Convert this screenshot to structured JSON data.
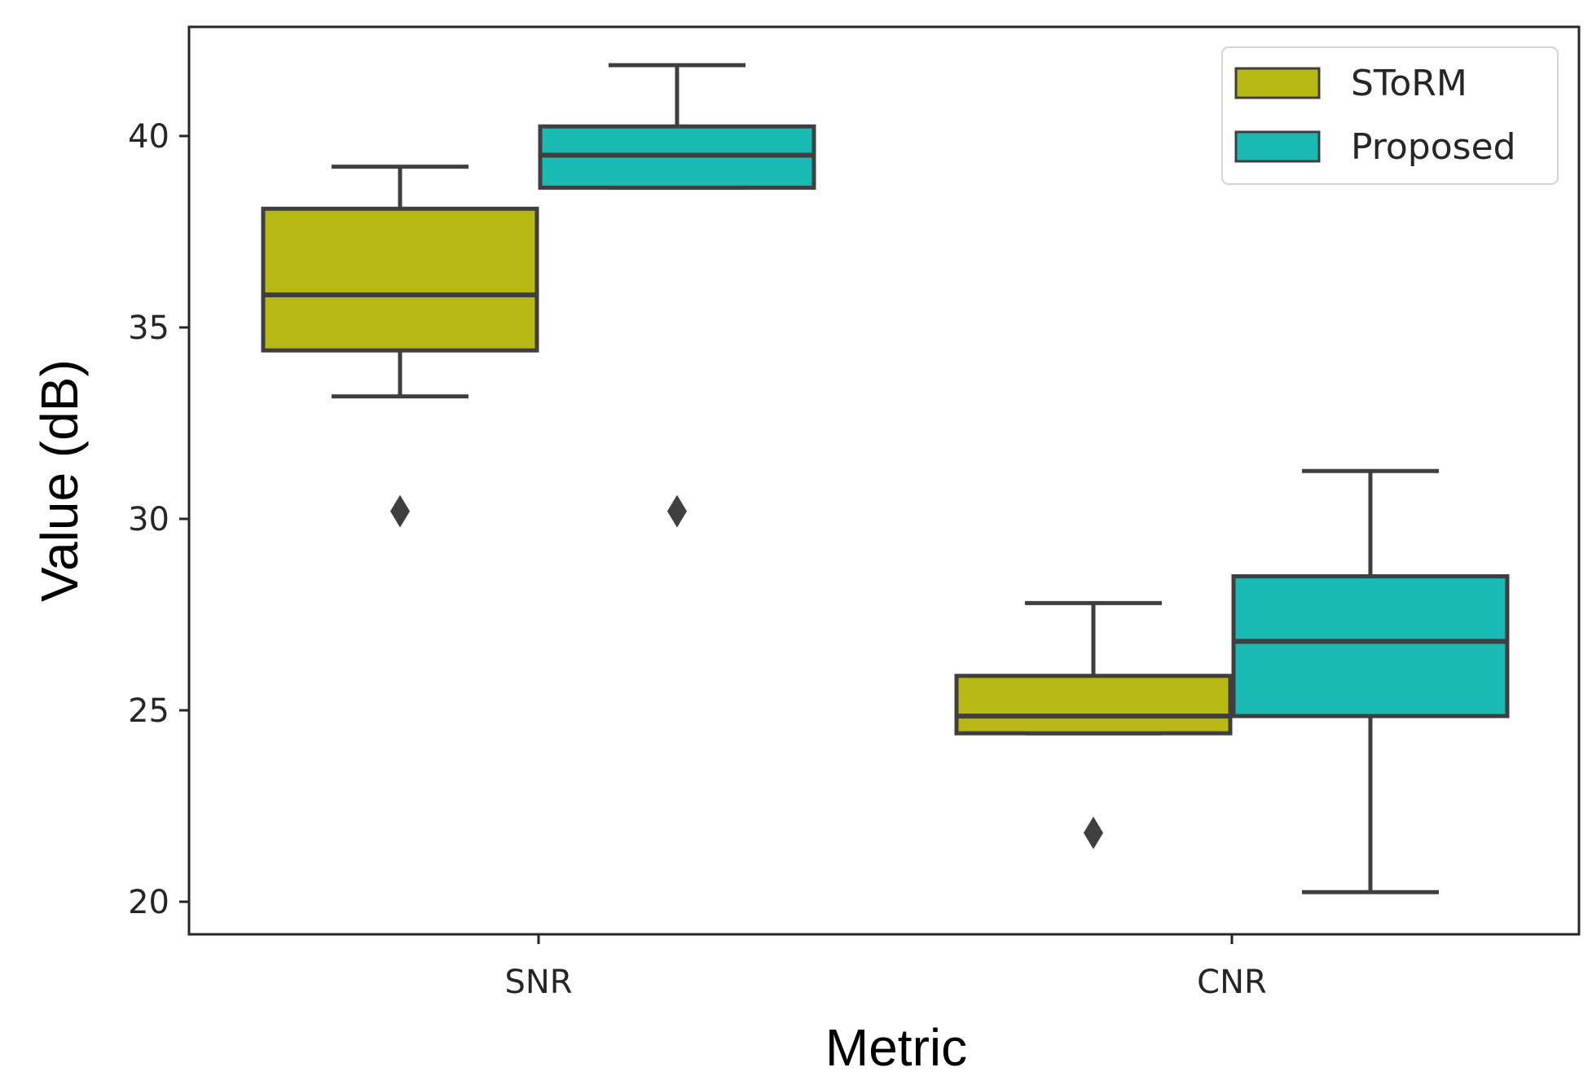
{
  "chart_data": {
    "type": "box",
    "xlabel": "Metric",
    "ylabel": "Value (dB)",
    "categories": [
      "SNR",
      "CNR"
    ],
    "yticks": [
      20,
      25,
      30,
      35,
      40
    ],
    "ylim": [
      19.15,
      42.85
    ],
    "grid": false,
    "legend_position": "top-right",
    "series": [
      {
        "name": "SToRM",
        "color": "#b8b814",
        "boxes": [
          {
            "category": "SNR",
            "whisker_low": 33.2,
            "q1": 34.4,
            "median": 35.85,
            "q3": 38.1,
            "whisker_high": 39.2,
            "outliers": [
              30.2
            ]
          },
          {
            "category": "CNR",
            "whisker_low": 24.4,
            "q1": 24.4,
            "median": 24.85,
            "q3": 25.9,
            "whisker_high": 27.8,
            "outliers": [
              21.8
            ]
          }
        ]
      },
      {
        "name": "Proposed",
        "color": "#1ab9b4",
        "boxes": [
          {
            "category": "SNR",
            "whisker_low": 38.65,
            "q1": 38.65,
            "median": 39.5,
            "q3": 40.25,
            "whisker_high": 41.85,
            "outliers": [
              30.2
            ]
          },
          {
            "category": "CNR",
            "whisker_low": 20.25,
            "q1": 24.85,
            "median": 26.8,
            "q3": 28.5,
            "whisker_high": 31.25,
            "outliers": []
          }
        ]
      }
    ]
  }
}
